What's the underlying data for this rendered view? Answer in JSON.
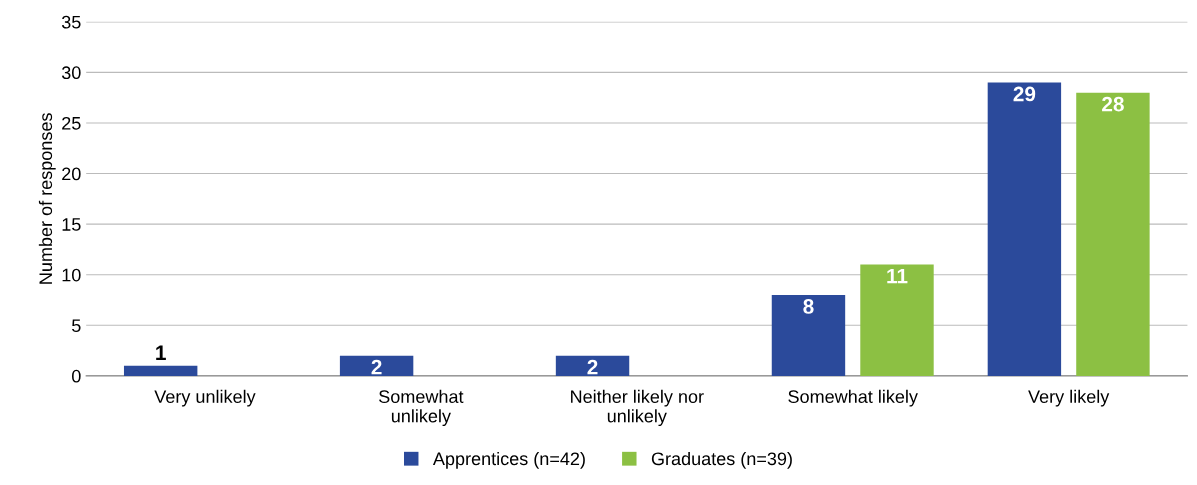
{
  "chart_data": {
    "type": "bar",
    "ylabel": "Number of responses",
    "categories": [
      "Very unlikely",
      "Somewhat\nunlikely",
      "Neither likely nor\nunlikely",
      "Somewhat likely",
      "Very likely"
    ],
    "series": [
      {
        "name": "Apprentices (n=42)",
        "color": "#2b4a9b",
        "values": [
          1,
          2,
          2,
          8,
          29
        ],
        "value_labels": [
          "1",
          "2",
          "2",
          "8",
          "29"
        ]
      },
      {
        "name": "Graduates (n=39)",
        "color": "#8cc043",
        "values": [
          0,
          0,
          0,
          11,
          28
        ],
        "value_labels": [
          null,
          null,
          null,
          "11",
          "28"
        ]
      }
    ],
    "ylim": [
      0,
      35
    ],
    "yticks": [
      0,
      5,
      10,
      15,
      20,
      25,
      30,
      35
    ],
    "grid": "y",
    "legend": "bottom"
  }
}
